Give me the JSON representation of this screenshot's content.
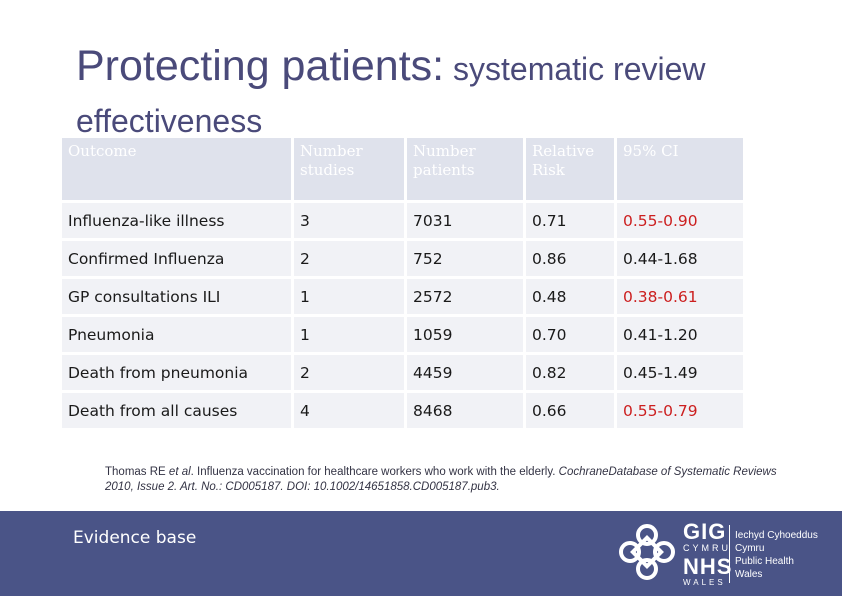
{
  "title": {
    "main": "Protecting patients:",
    "rest": "systematic review",
    "line2": "effectiveness"
  },
  "table": {
    "headers": [
      [
        "Outcome"
      ],
      [
        "Number",
        "studies"
      ],
      [
        "Number",
        "patients"
      ],
      [
        "Relative",
        "Risk"
      ],
      [
        "95% CI"
      ]
    ],
    "rows": [
      {
        "outcome": "Influenza-like illness",
        "studies": "3",
        "patients": "7031",
        "rr": "0.71",
        "ci": "0.55-0.90",
        "ci_significant": true
      },
      {
        "outcome": "Confirmed Influenza",
        "studies": "2",
        "patients": "752",
        "rr": "0.86",
        "ci": "0.44-1.68",
        "ci_significant": false
      },
      {
        "outcome": "GP consultations ILI",
        "studies": "1",
        "patients": "2572",
        "rr": "0.48",
        "ci": "0.38-0.61",
        "ci_significant": true
      },
      {
        "outcome": "Pneumonia",
        "studies": "1",
        "patients": "1059",
        "rr": "0.70",
        "ci": "0.41-1.20",
        "ci_significant": false
      },
      {
        "outcome": "Death from pneumonia",
        "studies": "2",
        "patients": "4459",
        "rr": "0.82",
        "ci": "0.45-1.49",
        "ci_significant": false
      },
      {
        "outcome": "Death from all causes",
        "studies": "4",
        "patients": "8468",
        "rr": "0.66",
        "ci": "0.55-0.79",
        "ci_significant": true
      }
    ]
  },
  "citation": {
    "p1": "Thomas RE ",
    "etal": "et al",
    "p2": ". Influenza vaccination for healthcare workers who work with the elderly. ",
    "journal": "CochraneDatabase of Systematic Reviews 2010, Issue 2. Art. No.: CD005187. DOI: 10.1002/14651858.CD005187.pub3."
  },
  "footer": {
    "label": "Evidence base",
    "logo": {
      "gig": "GIG",
      "cymru": "CYMRU",
      "nhs": "NHS",
      "wales": "WALES",
      "org_lines": [
        "Iechyd Cyhoeddus",
        "Cymru",
        "Public Health",
        "Wales"
      ]
    }
  },
  "colors": {
    "title": "#4a4a7a",
    "significant": "#cc1f1f",
    "footer_bg": "#4a5487",
    "cell_bg": "#f1f2f6",
    "header_bg": "#dfe2ec"
  }
}
